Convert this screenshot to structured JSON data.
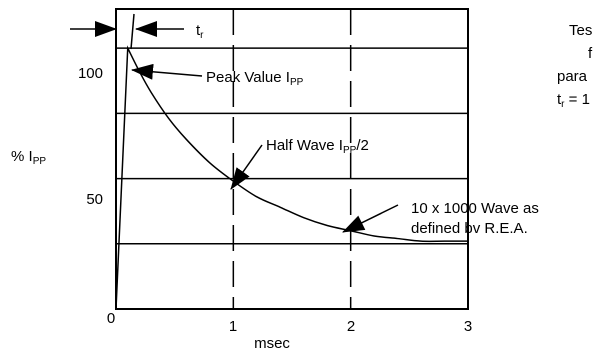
{
  "chart_data": {
    "type": "line",
    "xlabel": "msec",
    "ylabel_main": "% I",
    "ylabel_sub": "PP",
    "x_ticks": [
      "0",
      "1",
      "2",
      "3"
    ],
    "y_ticks": [
      "50",
      "100"
    ],
    "xlim": [
      0,
      3
    ],
    "ylim": [
      0,
      115
    ],
    "grid": true,
    "series": [
      {
        "x": [
          0,
          0.1,
          0.2,
          0.3,
          0.45,
          0.6,
          0.8,
          1.0,
          1.2,
          1.4,
          1.6,
          1.8,
          2.0,
          2.2,
          2.4,
          2.6,
          2.8,
          3.0
        ],
        "y": [
          0,
          100,
          91,
          83,
          73,
          65,
          56,
          49,
          43,
          39,
          35,
          32,
          30,
          28,
          27,
          26,
          26,
          26
        ]
      }
    ],
    "annotations": {
      "tr_main": "t",
      "tr_sub": "r",
      "peak_main": "Peak Value I",
      "peak_sub": "PP",
      "half_main": "Half Wave I",
      "half_sub": "PP",
      "half_tail": "/2",
      "wave_line1": "10 x 1000 Wave as",
      "wave_line2": "defined bv R.E.A."
    },
    "side_text": {
      "line1": "Tes",
      "line2": "f",
      "line3": "para",
      "line4_main": "t",
      "line4_sub": "r",
      "line4_tail": " = 1"
    }
  }
}
